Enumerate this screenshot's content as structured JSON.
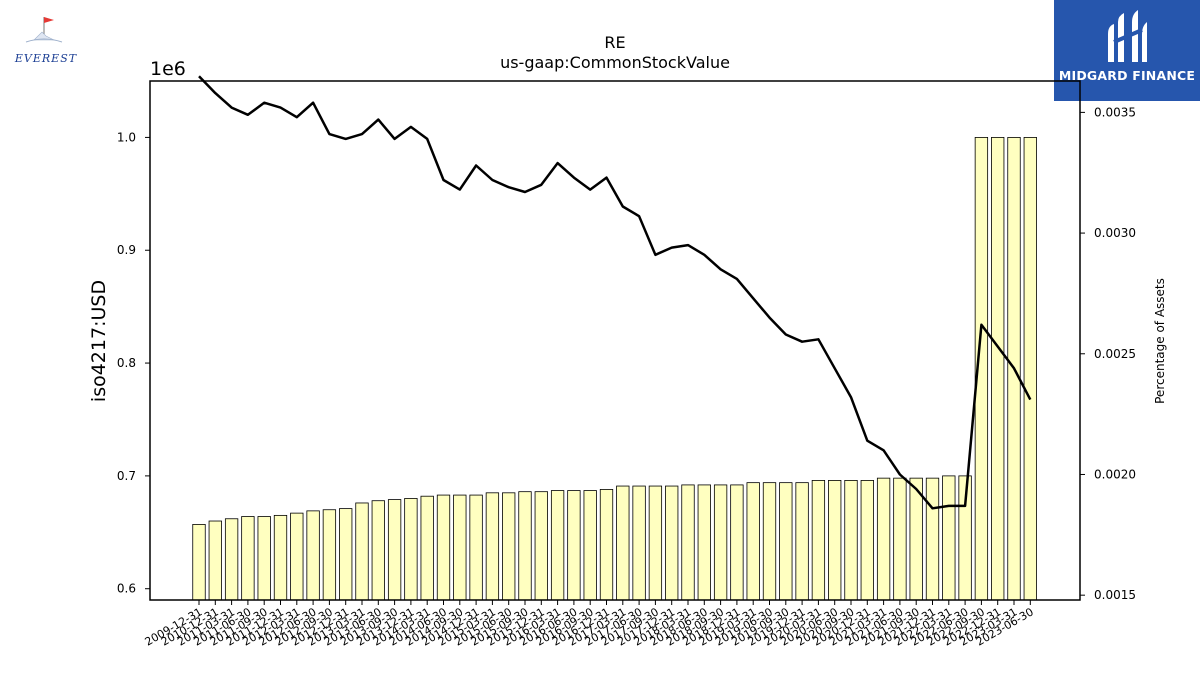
{
  "logos": {
    "left": {
      "name": "EVEREST",
      "accent": "#e53935",
      "color": "#1c3f94"
    },
    "right": {
      "name": "MIDGARD FINANCE",
      "background": "#2656ad"
    }
  },
  "chart_data": {
    "type": "bar",
    "title": "RE",
    "subtitle": "us-gaap:CommonStockValue",
    "ylabel": "iso4217:USD",
    "y_offset_label": "1e6",
    "y2label": "Percentage of Assets",
    "ylim": [
      590000,
      1050000
    ],
    "y2lim": [
      0.00148,
      0.00363
    ],
    "yticks": [
      "0.6",
      "0.7",
      "0.8",
      "0.9",
      "1.0"
    ],
    "y2ticks": [
      "0.0015",
      "0.0020",
      "0.0025",
      "0.0030",
      "0.0035"
    ],
    "categories": [
      "2009-12-31",
      "2010-12-31",
      "2011-03-31",
      "2011-06-30",
      "2011-09-30",
      "2011-12-31",
      "2012-03-31",
      "2012-06-30",
      "2012-09-30",
      "2012-12-31",
      "2013-03-31",
      "2013-06-30",
      "2013-09-30",
      "2013-12-31",
      "2014-03-31",
      "2014-06-30",
      "2014-09-30",
      "2014-12-31",
      "2015-03-31",
      "2015-06-30",
      "2015-09-30",
      "2015-12-31",
      "2016-03-31",
      "2016-06-30",
      "2016-09-30",
      "2016-12-31",
      "2017-03-31",
      "2017-06-30",
      "2017-09-30",
      "2017-12-31",
      "2018-03-31",
      "2018-06-30",
      "2018-09-30",
      "2018-12-31",
      "2019-03-31",
      "2019-06-30",
      "2019-09-30",
      "2019-12-31",
      "2020-03-31",
      "2020-06-30",
      "2020-09-30",
      "2020-12-31",
      "2021-03-31",
      "2021-06-30",
      "2021-09-30",
      "2021-12-31",
      "2022-03-31",
      "2022-06-30",
      "2022-09-30",
      "2022-12-31",
      "2023-03-31",
      "2023-06-30"
    ],
    "series": [
      {
        "type": "bar",
        "axis": "left",
        "color": "#ffffc0",
        "values": [
          657000,
          660000,
          662000,
          664000,
          664000,
          665000,
          667000,
          669000,
          670000,
          671000,
          676000,
          678000,
          679000,
          680000,
          682000,
          683000,
          683000,
          683000,
          685000,
          685000,
          686000,
          686000,
          687000,
          687000,
          687000,
          688000,
          691000,
          691000,
          691000,
          691000,
          692000,
          692000,
          692000,
          692000,
          694000,
          694000,
          694000,
          694000,
          696000,
          696000,
          696000,
          696000,
          698000,
          698000,
          698000,
          698000,
          700000,
          700000,
          1000000,
          1000000,
          1000000,
          1000000
        ]
      },
      {
        "type": "line",
        "axis": "right",
        "color": "#000000",
        "values": [
          0.00365,
          0.00358,
          0.00352,
          0.00349,
          0.00354,
          0.00352,
          0.00348,
          0.00354,
          0.00341,
          0.00339,
          0.00341,
          0.00347,
          0.00339,
          0.00344,
          0.00339,
          0.00322,
          0.00318,
          0.00328,
          0.00322,
          0.00319,
          0.00317,
          0.0032,
          0.00329,
          0.00323,
          0.00318,
          0.00323,
          0.00311,
          0.00307,
          0.00291,
          0.00294,
          0.00295,
          0.00291,
          0.00285,
          0.00281,
          0.00273,
          0.00265,
          0.00258,
          0.00255,
          0.00256,
          0.00244,
          0.00232,
          0.00214,
          0.0021,
          0.002,
          0.00194,
          0.00186,
          0.00187,
          0.00187,
          0.00262,
          0.00253,
          0.00244,
          0.00231
        ]
      }
    ],
    "grid": false,
    "legend": "none"
  }
}
